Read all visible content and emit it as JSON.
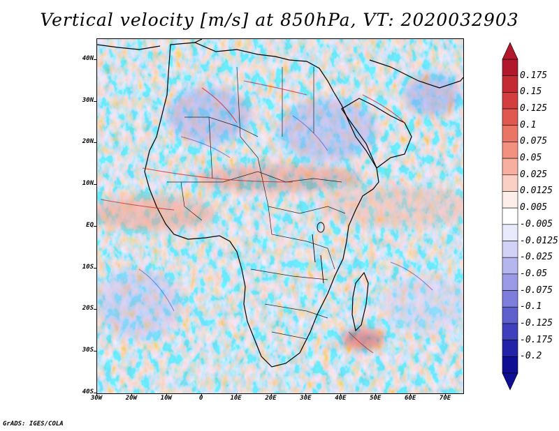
{
  "title": "Vertical velocity [m/s] at 850hPa, VT: 2020032903",
  "map": {
    "lat_labels": [
      "40N",
      "30N",
      "20N",
      "10N",
      "EQ",
      "10S",
      "20S",
      "30S",
      "40S"
    ],
    "lat_values": [
      40,
      30,
      20,
      10,
      0,
      -10,
      -20,
      -30,
      -40
    ],
    "lon_labels": [
      "30W",
      "20W",
      "10W",
      "0",
      "10E",
      "20E",
      "30E",
      "40E",
      "50E",
      "60E",
      "70E"
    ],
    "lon_values": [
      -30,
      -20,
      -10,
      0,
      10,
      20,
      30,
      40,
      50,
      60,
      70
    ],
    "lat_range": [
      -40,
      45
    ],
    "lon_range": [
      -30,
      75
    ],
    "field": "Vertical velocity",
    "units": "m/s",
    "level": "850hPa",
    "valid_time": "2020032903"
  },
  "colorbar": {
    "labels": [
      "0.175",
      "0.15",
      "0.125",
      "0.1",
      "0.075",
      "0.05",
      "0.025",
      "0.0125",
      "0.005",
      "-0.005",
      "-0.0125",
      "-0.025",
      "-0.05",
      "-0.075",
      "-0.1",
      "-0.125",
      "-0.175",
      "-0.2"
    ],
    "colors": [
      "#b2182b",
      "#c42a32",
      "#d33f3f",
      "#e0584f",
      "#ea7565",
      "#f2917f",
      "#f7b0a0",
      "#fbd0c4",
      "#fdeeea",
      "#ffffff",
      "#eaeafd",
      "#d2d2f7",
      "#b6b6ef",
      "#9a9ae6",
      "#7d7ddb",
      "#5f5fce",
      "#4040bd",
      "#2323a8",
      "#100e93"
    ]
  },
  "credit": "GrADS: IGES/COLA"
}
